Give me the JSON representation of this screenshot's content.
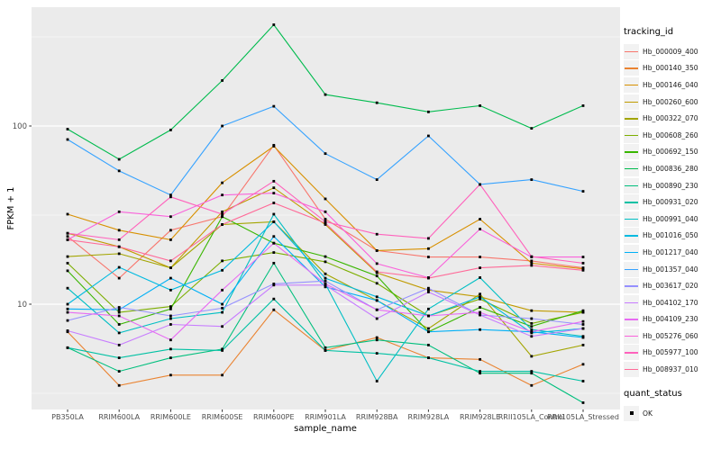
{
  "chart_data": {
    "type": "line",
    "title": "",
    "xlabel": "sample_name",
    "ylabel": "FPKM + 1",
    "y_scale": "log10",
    "y_ticks": [
      100,
      10
    ],
    "y_minor_gridlines": [
      316.2,
      31.62,
      3.162
    ],
    "ylim": [
      2.5,
      470
    ],
    "grid": true,
    "panel_bg": "#EBEBEB",
    "gridline_color": "#FFFFFF",
    "point_shape": "filled-square",
    "point_color": "#000000",
    "legend_position": "right",
    "categories": [
      "PB350LA",
      "RRIM600LA",
      "RRIM600LE",
      "RRIM600SE",
      "RRIM600PE",
      "RRIM901LA",
      "RRIM928BA",
      "RRIM928LA",
      "RRIM928LE",
      "RRII105LA_Control",
      "RRII105LA_Stressed"
    ],
    "series": [
      {
        "name": "Hb_000009_400",
        "color": "#F8766D",
        "values": [
          24,
          14,
          26,
          31,
          78,
          30,
          20,
          18.4,
          18.4,
          17.5,
          16
        ]
      },
      {
        "name": "Hb_000140_350",
        "color": "#EA8331",
        "values": [
          7,
          3.5,
          4,
          4,
          9.3,
          5.5,
          6.5,
          5,
          4.9,
          3.5,
          4.6
        ]
      },
      {
        "name": "Hb_000146_040",
        "color": "#D89000",
        "values": [
          32,
          26,
          23,
          48,
          77,
          39,
          20,
          20.5,
          30,
          17,
          15.8
        ]
      },
      {
        "name": "Hb_000260_600",
        "color": "#C09B00",
        "values": [
          25,
          21,
          16,
          33,
          45,
          28,
          15,
          12,
          11,
          9.2,
          9
        ]
      },
      {
        "name": "Hb_000322_070",
        "color": "#A3A500",
        "values": [
          18.5,
          19.2,
          16,
          28,
          29,
          14.8,
          10.5,
          7.3,
          11.4,
          5.1,
          5.9
        ]
      },
      {
        "name": "Hb_000608_260",
        "color": "#7CAE00",
        "values": [
          17,
          9,
          9.7,
          17.5,
          19.5,
          17.3,
          13.1,
          8.6,
          10.7,
          7.8,
          9
        ]
      },
      {
        "name": "Hb_000692_150",
        "color": "#39B600",
        "values": [
          15.4,
          7.7,
          9.4,
          31,
          22,
          18.5,
          14.4,
          7,
          9.6,
          7.5,
          9.2
        ]
      },
      {
        "name": "Hb_000836_280",
        "color": "#00BB4E",
        "values": [
          96,
          65,
          95,
          180,
          370,
          150,
          135,
          120,
          130,
          97,
          130
        ]
      },
      {
        "name": "Hb_000890_230",
        "color": "#00BF7D",
        "values": [
          5.7,
          4.2,
          5,
          5.6,
          17,
          5.7,
          6.3,
          5.9,
          4.1,
          4.1,
          2.8
        ]
      },
      {
        "name": "Hb_000931_020",
        "color": "#00C1A3",
        "values": [
          5.7,
          5,
          5.6,
          5.5,
          10.7,
          5.5,
          5.3,
          5,
          4.2,
          4.2,
          3.7
        ]
      },
      {
        "name": "Hb_000991_040",
        "color": "#00BFC4",
        "values": [
          12.3,
          6.9,
          8.3,
          9,
          32,
          13,
          3.7,
          9.4,
          14.1,
          7.2,
          6.6
        ]
      },
      {
        "name": "Hb_001016_050",
        "color": "#00BAE0",
        "values": [
          10,
          16.1,
          12,
          15.5,
          29,
          14,
          11,
          8.6,
          11,
          6.9,
          7.3
        ]
      },
      {
        "name": "Hb_001217_040",
        "color": "#00B0F6",
        "values": [
          9.4,
          9.3,
          14,
          10,
          24,
          12.5,
          10.5,
          7,
          7.2,
          7,
          6.5
        ]
      },
      {
        "name": "Hb_001357_040",
        "color": "#35A2FF",
        "values": [
          84,
          56,
          41,
          100,
          129,
          70,
          50,
          88,
          47,
          50,
          43
        ]
      },
      {
        "name": "Hb_003617_020",
        "color": "#9590FF",
        "values": [
          8.1,
          9.6,
          8.6,
          9.5,
          13,
          13.5,
          9.3,
          12.3,
          8.7,
          8.3,
          7.7
        ]
      },
      {
        "name": "Hb_004102_170",
        "color": "#C77CFF",
        "values": [
          7.1,
          5.9,
          7.7,
          7.5,
          12.8,
          12.8,
          8.3,
          11.7,
          8.7,
          6.6,
          7.3
        ]
      },
      {
        "name": "Hb_004109_230",
        "color": "#E76BF3",
        "values": [
          9,
          8.6,
          6.3,
          12,
          22,
          13,
          9.3,
          8.6,
          9,
          7,
          8
        ]
      },
      {
        "name": "Hb_005276_060",
        "color": "#FA62DB",
        "values": [
          23,
          33,
          31,
          41,
          42,
          33,
          16.9,
          14.1,
          26.4,
          18.4,
          18.4
        ]
      },
      {
        "name": "Hb_005977_100",
        "color": "#FF62BC",
        "values": [
          25,
          23,
          40,
          32,
          49,
          29,
          24.7,
          23.4,
          47,
          18.5,
          17
        ]
      },
      {
        "name": "Hb_008937_010",
        "color": "#FF6A98",
        "values": [
          23,
          21,
          17.5,
          28,
          37,
          28.5,
          15.2,
          14,
          16,
          16.5,
          15.5
        ]
      }
    ]
  },
  "legend": {
    "tracking_title": "tracking_id",
    "quant_title": "quant_status",
    "quant_items": [
      {
        "label": "OK"
      }
    ]
  }
}
